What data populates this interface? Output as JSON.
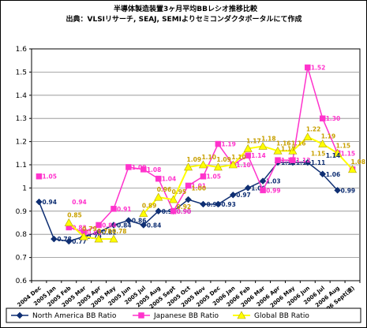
{
  "chart_data": {
    "type": "line",
    "title": "半導体製造装置3ヶ月平均BBレシオ推移比較",
    "subtitle": "出典：VLSIリサーチ, SEAJ, SEMIよりセミコンダクタポータルにて作成",
    "xlabel": "",
    "ylabel": "",
    "ylim": [
      0.6,
      1.6
    ],
    "yticks": [
      "0.6",
      "0.7",
      "0.8",
      "0.9",
      "1",
      "1.1",
      "1.2",
      "1.3",
      "1.4",
      "1.5",
      "1.6"
    ],
    "grid": true,
    "legend_position": "bottom",
    "categories": [
      "2004 Dec",
      "2005 Jan",
      "2005 Feb",
      "2005 Mar",
      "2005 Apr",
      "2005 May",
      "2005 Jun",
      "2005 Jul",
      "2005 Aug",
      "2005 Sept",
      "2005 Oct",
      "2005 Nov",
      "2005 Dec",
      "2006 Jan",
      "2006 Feb",
      "2006 Mar",
      "2006 Apr",
      "2006 May",
      "2006 Jun",
      "2006 Jul",
      "2006 Aug",
      "2006 Sept(速)"
    ],
    "series": [
      {
        "name": "North America BB Ratio",
        "color": "#0f2f73",
        "marker": "diamond",
        "values": [
          0.94,
          0.78,
          0.77,
          0.79,
          0.81,
          0.84,
          0.86,
          0.84,
          0.9,
          0.9,
          0.95,
          0.93,
          0.93,
          0.97,
          1.0,
          1.03,
          1.11,
          1.11,
          1.11,
          1.06,
          0.99,
          null
        ],
        "labels": [
          "0.94",
          "0.78",
          "0.77",
          "0.79",
          "0.81",
          "0.84",
          "0.86",
          "0.84",
          "0.90",
          "0.90",
          "",
          "0.93",
          "0.93",
          "0.97",
          "1.00",
          "1.03",
          "1.11",
          "1.11",
          "1.11",
          "1.06",
          "0.99",
          ""
        ]
      },
      {
        "name": "Japanese BB Ratio",
        "color": "#ff33cc",
        "marker": "square",
        "values": [
          1.05,
          null,
          0.83,
          0.81,
          0.84,
          0.91,
          1.09,
          1.08,
          1.04,
          0.9,
          1.01,
          1.05,
          1.19,
          1.1,
          1.14,
          0.99,
          1.12,
          1.12,
          1.52,
          1.3,
          1.15,
          1.08
        ],
        "labels": [
          "1.05",
          "",
          "0.83",
          "0.81",
          "0.84",
          "0.91",
          "1.09",
          "1.08",
          "1.04",
          "0.90",
          "1.01",
          "1.05",
          "1.19",
          "1.10",
          "1.14",
          "0.99",
          "1.12",
          "1.12",
          "1.52",
          "1.30",
          "1.15",
          ""
        ]
      },
      {
        "name": "Global BB Ratio",
        "color": "#ffff00",
        "label_color": "#c8a000",
        "marker": "triangle",
        "values": [
          null,
          null,
          0.85,
          0.79,
          0.78,
          0.78,
          null,
          0.89,
          0.96,
          0.95,
          1.09,
          1.1,
          1.09,
          1.1,
          1.17,
          1.18,
          1.16,
          1.16,
          1.22,
          1.19,
          1.15,
          1.08
        ],
        "labels": [
          "",
          "",
          "0.85",
          "0.79",
          "0.78",
          "0.78",
          "",
          "0.89",
          "0.96",
          "0.95",
          "1.09",
          "1.10",
          "1.09",
          "1.10",
          "1.17",
          "1.18",
          "1.16",
          "1.16",
          "1.22",
          "1.19",
          "1.15",
          "1.08"
        ]
      }
    ],
    "extra_labels": [
      {
        "text": "0.94",
        "category": 2,
        "value": 0.94,
        "color": "#ff33cc"
      },
      {
        "text": "0.92",
        "category": 9,
        "value": 0.92,
        "color": "#c8a000"
      },
      {
        "text": "1.00",
        "category": 10,
        "value": 1.0,
        "color": "#c8a000"
      },
      {
        "text": "1.17",
        "category": 16,
        "value": 1.17,
        "color": "#c8a000"
      },
      {
        "text": "1.15",
        "category": 18,
        "value": 1.15,
        "color": "#c8a000"
      },
      {
        "text": "1.14",
        "category": 19,
        "value": 1.14,
        "color": "#0f2f73"
      }
    ],
    "legend": [
      "North America BB Ratio",
      "Japanese BB Ratio",
      "Global BB Ratio"
    ]
  }
}
